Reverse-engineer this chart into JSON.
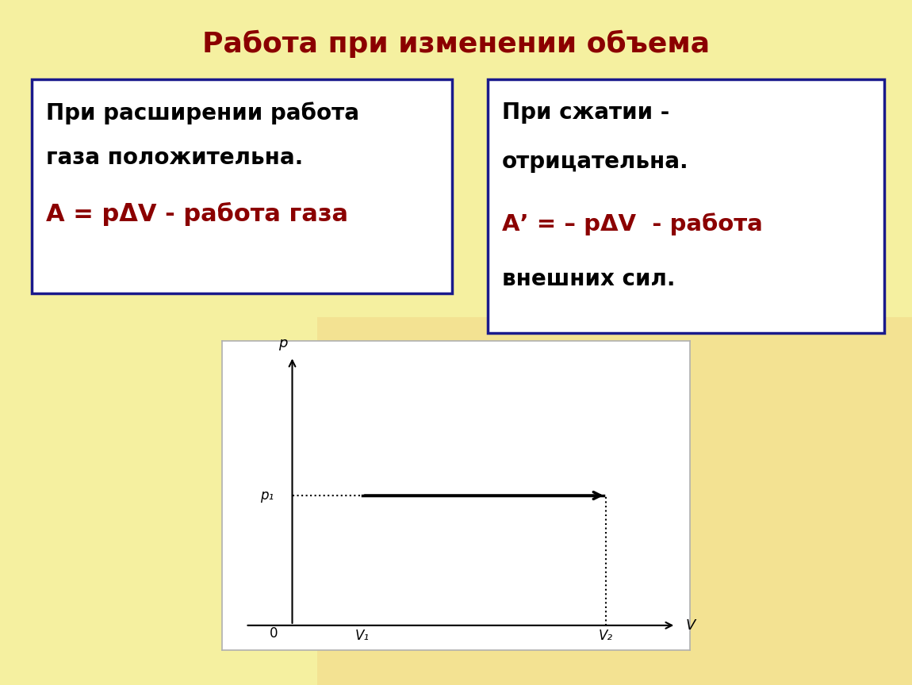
{
  "title": "Работа при изменении объема",
  "title_color": "#8B0000",
  "title_fontsize": 26,
  "bg_color_top": "#FAFACC",
  "bg_color": "#F5F0A0",
  "box_border_color": "#1a1a8c",
  "box_bg_color": "#FFFFFF",
  "box1_line1": "При расширении работа",
  "box1_line2": "газа положительна.",
  "box1_line3_red": "А = рΔV - работа газа",
  "box2_line1": "При сжатии -",
  "box2_line2": "отрицательна.",
  "box2_line3_red": "А’ = – рΔV  - работа",
  "box2_line4": "внешних сил.",
  "text_black_color": "#000000",
  "text_red_color": "#8B0000",
  "graph_bg": "#FFFFFF",
  "graph_border": "#b0b0b0",
  "p1_label": "p₁",
  "v1_label": "V₁",
  "v2_label": "V₂",
  "p_label": "p",
  "v_label": "V",
  "origin_label": "0"
}
